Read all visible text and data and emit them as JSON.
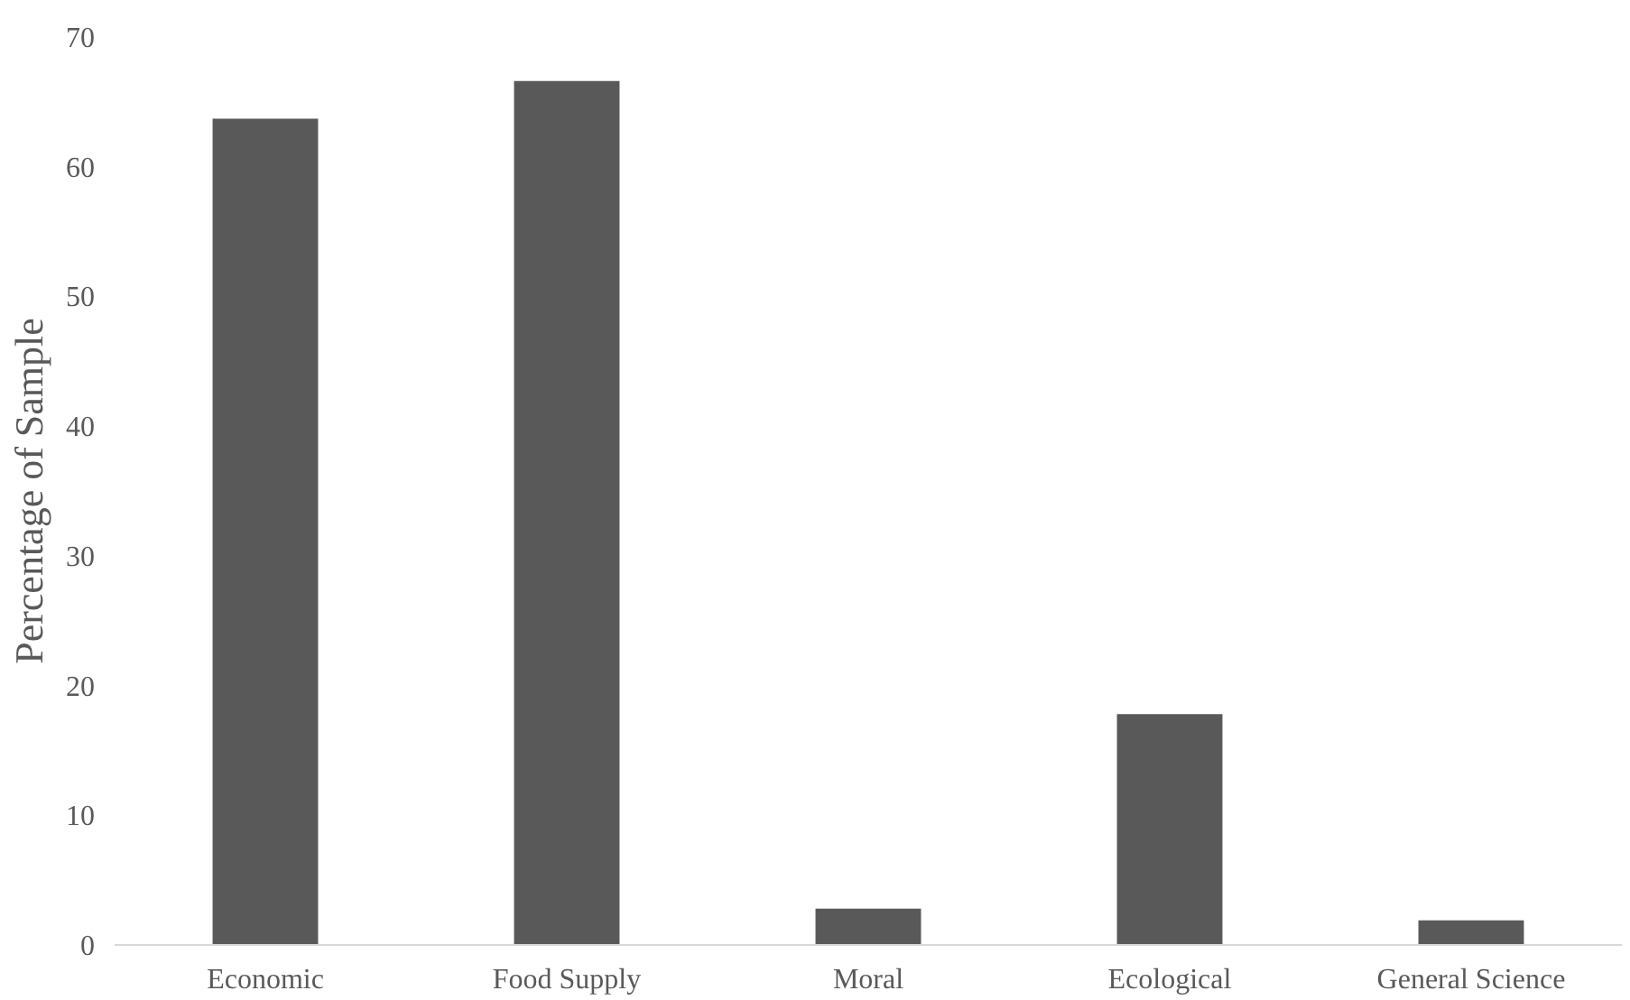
{
  "chart_data": {
    "type": "bar",
    "ylabel": "Percentage of Sample",
    "categories": [
      "Economic",
      "Food Supply",
      "Moral",
      "Ecological",
      "General Science"
    ],
    "values": [
      63.7,
      66.6,
      2.8,
      17.8,
      1.9
    ],
    "color": "#595959",
    "ylim": [
      0,
      70
    ],
    "yticks": [
      0,
      10,
      20,
      30,
      40,
      50,
      60,
      70
    ],
    "grid": false
  }
}
